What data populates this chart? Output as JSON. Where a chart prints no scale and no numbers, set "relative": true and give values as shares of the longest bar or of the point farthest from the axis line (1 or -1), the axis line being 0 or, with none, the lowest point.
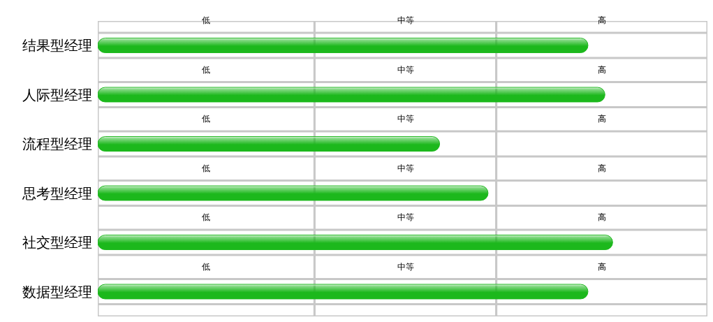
{
  "chart_data": {
    "type": "bar",
    "orientation": "horizontal",
    "relative": true,
    "categories": [
      "结果型经理",
      "人际型经理",
      "流程型经理",
      "思考型经理",
      "社交型经理",
      "数据型经理"
    ],
    "values": [
      0.952,
      0.985,
      0.664,
      0.758,
      1,
      0.952
    ],
    "color": "#1cb81c",
    "bands": [
      {
        "axis": "x",
        "from": 0,
        "to": 0.421,
        "label": "低",
        "color": "#c8c8c8"
      },
      {
        "axis": "x",
        "from": 0.421,
        "to": 0.774,
        "label": "中等",
        "color": "#c8c8c8"
      },
      {
        "axis": "x",
        "from": 0.774,
        "to": 1.184,
        "label": "高",
        "color": "#c8c8c8"
      }
    ]
  }
}
